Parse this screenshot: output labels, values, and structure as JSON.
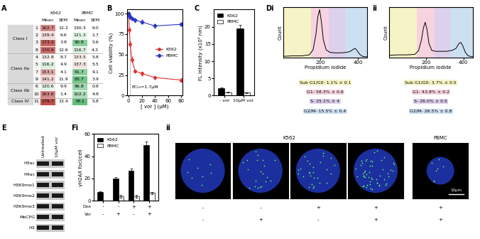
{
  "panel_labels": [
    "A",
    "B",
    "C",
    "Di",
    "ii",
    "E",
    "Fi",
    "ii"
  ],
  "table": {
    "header": {
      "groups": [
        "K562",
        "PBMC"
      ],
      "columns": [
        "Mean",
        "SEM",
        "Mean",
        "SEM"
      ]
    },
    "groups": [
      {
        "name": "Class I",
        "rows": [
          [
            1,
            162.7,
            12.2,
            130.3,
            6.0
          ],
          [
            2,
            139.4,
            6.6,
            121.3,
            1.7
          ],
          [
            3,
            173.2,
            3.8,
            90.8,
            5.6
          ],
          [
            8,
            170.9,
            12.6,
            116.7,
            4.3
          ]
        ]
      },
      {
        "name": "Class IIa",
        "rows": [
          [
            4,
            132.8,
            8.7,
            133.5,
            5.8
          ],
          [
            5,
            116.2,
            4.9,
            137.3,
            5.5
          ],
          [
            7,
            153.1,
            4.1,
            91.7,
            9.1
          ],
          [
            9,
            141.2,
            11.9,
            83.7,
            3.9
          ]
        ]
      },
      {
        "name": "Class IIb",
        "rows": [
          [
            6,
            120.6,
            9.9,
            96.8,
            0.8
          ],
          [
            10,
            163.6,
            1.4,
            102.2,
            4.8
          ]
        ]
      },
      {
        "name": "Class IV",
        "rows": [
          [
            11,
            179.7,
            13.4,
            78.1,
            5.8
          ]
        ]
      }
    ]
  },
  "chart_data": [
    {
      "type": "line",
      "x_label": "[ vor ] (μM)",
      "y_label": "Cell viability (%)",
      "x": [
        0,
        1.25,
        2.5,
        5,
        10,
        20,
        40,
        80
      ],
      "series": [
        {
          "name": "K562",
          "color": "#e0302f",
          "marker": "circle",
          "values": [
            100,
            80,
            63,
            44,
            30,
            27,
            22,
            19
          ],
          "errors": [
            2,
            3,
            3,
            3,
            2,
            2,
            2,
            2
          ]
        },
        {
          "name": "PBMC",
          "color": "#2a36c8",
          "marker": "diamond",
          "values": [
            100,
            98,
            96,
            94,
            92,
            90,
            85,
            87
          ],
          "errors": [
            2,
            2,
            2,
            2,
            2,
            2,
            2,
            2
          ]
        }
      ],
      "xlim": [
        -2,
        82
      ],
      "xticks": [
        0,
        20,
        40,
        60,
        80
      ],
      "ylim": [
        0,
        105
      ],
      "yticks": [
        0,
        25,
        50,
        75,
        100
      ],
      "legend": "center right",
      "ec50": 1.7,
      "annotation": "EC₅₀=1.7μM"
    },
    {
      "type": "bar",
      "categories": [
        "- vor",
        "10μM vor"
      ],
      "series": [
        {
          "name": "K562",
          "color": "#000000",
          "values": [
            2.1,
            19.6
          ],
          "errors": [
            0.2,
            1.0
          ]
        },
        {
          "name": "PBMC",
          "color": "#ffffff",
          "values": [
            1.0,
            0.9
          ],
          "errors": [
            0.1,
            0.1
          ]
        }
      ],
      "y_label": "FL intensity (x10⁴ nm)",
      "ylim": [
        0,
        25
      ],
      "yticks": [
        0,
        5,
        10,
        15,
        20
      ],
      "legend": "upper left"
    },
    {
      "type": "line",
      "x_label": "Propidium iodide",
      "y_label": "Count",
      "color": "#000000",
      "x": [
        0,
        50,
        100,
        140,
        160,
        175,
        185,
        195,
        205,
        215,
        230,
        250,
        280,
        310,
        340,
        360,
        375,
        385,
        395,
        410,
        425,
        450
      ],
      "values": [
        2,
        3,
        3,
        5,
        15,
        45,
        80,
        95,
        70,
        35,
        15,
        10,
        9,
        9,
        10,
        12,
        16,
        18,
        14,
        6,
        2,
        1
      ],
      "gates": [
        {
          "label": "Sub G1/G0- 1.1% ± 0.1",
          "range": [
            0,
            150
          ],
          "color": "#f6f4c6"
        },
        {
          "label": "G1- 58.3% ± 0.6",
          "range": [
            150,
            245
          ],
          "color": "#f7d3e0"
        },
        {
          "label": "S- 25.1% ± 4",
          "range": [
            245,
            330
          ],
          "color": "#ddd0ec"
        },
        {
          "label": "G2/M- 15.5% ± 0.4",
          "range": [
            330,
            450
          ],
          "color": "#cde0f2"
        }
      ],
      "xlim": [
        0,
        450
      ],
      "xticks": [
        200,
        400
      ],
      "ylim": [
        0,
        100
      ],
      "tick_labels": "x"
    },
    {
      "type": "line",
      "x_label": "Propidium iodide",
      "y_label": "Count",
      "color": "#000000",
      "x": [
        0,
        50,
        100,
        140,
        160,
        175,
        185,
        195,
        205,
        215,
        230,
        250,
        280,
        310,
        340,
        360,
        375,
        385,
        395,
        410,
        425,
        450
      ],
      "values": [
        4,
        5,
        5,
        6,
        14,
        35,
        58,
        70,
        55,
        28,
        14,
        12,
        12,
        12,
        14,
        18,
        27,
        30,
        24,
        10,
        3,
        1
      ],
      "gates": [
        {
          "label": "Sub G1/G0- 3.7% ± 0.5",
          "range": [
            0,
            150
          ],
          "color": "#f6f4c6"
        },
        {
          "label": "G1- 43.8% ± 0.2",
          "range": [
            150,
            245
          ],
          "color": "#f7d3e0"
        },
        {
          "label": "S- 26.0% ± 0.5",
          "range": [
            245,
            330
          ],
          "color": "#ddd0ec"
        },
        {
          "label": "G2/M- 26.5% ± 0.8",
          "range": [
            330,
            450
          ],
          "color": "#cde0f2"
        }
      ],
      "xlim": [
        0,
        450
      ],
      "xticks": [
        200,
        400
      ],
      "ylim": [
        0,
        100
      ],
      "tick_labels": "x"
    },
    {
      "type": "bar",
      "x_rows": [
        {
          "name": "Dox",
          "values": [
            "-",
            "-",
            "+",
            "+"
          ]
        },
        {
          "name": "Vor",
          "values": [
            "-",
            "+",
            "-",
            "+"
          ]
        }
      ],
      "series": [
        {
          "name": "K562",
          "color": "#000000",
          "values": [
            8,
            20,
            27,
            50
          ],
          "errors": [
            0.5,
            1,
            2,
            3
          ]
        },
        {
          "name": "PBMC",
          "color": "#ffffff",
          "values": [
            0,
            4,
            4,
            7
          ],
          "errors": [
            0,
            1,
            1,
            1
          ]
        }
      ],
      "y_label": "γH2AX foci/cell",
      "ylim": [
        0,
        60
      ],
      "yticks": [
        0,
        20,
        40,
        60
      ],
      "legend": "upper left"
    }
  ],
  "blot": {
    "columns": [
      "Untreated",
      "10μM vor"
    ],
    "rows": [
      "H3ac",
      "H4ac",
      "H3K9me1",
      "H3K9me2",
      "H3K9me3",
      "MeCPG",
      "H3"
    ]
  },
  "microscopy": {
    "groups": [
      {
        "name": "K562",
        "images": [
          {
            "dox": "-",
            "vor": "-"
          },
          {
            "dox": "-",
            "vor": "+"
          },
          {
            "dox": "+",
            "vor": "-"
          },
          {
            "dox": "+",
            "vor": "+"
          }
        ]
      },
      {
        "name": "PBMC",
        "images": [
          {
            "dox": "+",
            "vor": "+"
          }
        ]
      }
    ],
    "scale_bar": "10μm"
  }
}
